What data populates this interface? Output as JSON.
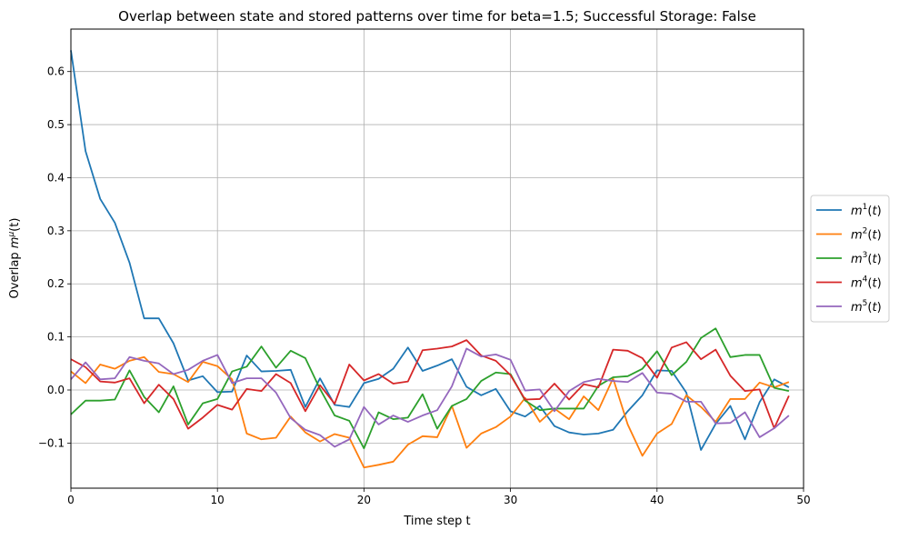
{
  "chart_data": {
    "type": "line",
    "title": "Overlap between state and stored patterns over time for beta=1.5; Successful Storage: False",
    "xlabel": "Time step t",
    "ylabel_prefix": "Overlap ",
    "ylabel_math": "m",
    "ylabel_sup": "μ",
    "ylabel_suffix": "(t)",
    "xlim": [
      0,
      50
    ],
    "ylim": [
      -0.185,
      0.68
    ],
    "xticks": [
      0,
      10,
      20,
      30,
      40,
      50
    ],
    "yticks": [
      -0.1,
      0.0,
      0.1,
      0.2,
      0.3,
      0.4,
      0.5,
      0.6
    ],
    "xtick_labels": [
      "0",
      "10",
      "20",
      "30",
      "40",
      "50"
    ],
    "ytick_labels": [
      "−0.1",
      "0.0",
      "0.1",
      "0.2",
      "0.3",
      "0.4",
      "0.5",
      "0.6"
    ],
    "grid": true,
    "legend_position": "center-right-outside",
    "x": [
      0,
      1,
      2,
      3,
      4,
      5,
      6,
      7,
      8,
      9,
      10,
      11,
      12,
      13,
      14,
      15,
      16,
      17,
      18,
      19,
      20,
      21,
      22,
      23,
      24,
      25,
      26,
      27,
      28,
      29,
      30,
      31,
      32,
      33,
      34,
      35,
      36,
      37,
      38,
      39,
      40,
      41,
      42,
      43,
      44,
      45,
      46,
      47,
      48,
      49
    ],
    "series": [
      {
        "label_sup": "1",
        "color": "#1f77b4",
        "values": [
          0.64,
          0.45,
          0.36,
          0.315,
          0.24,
          0.135,
          0.135,
          0.088,
          0.018,
          0.026,
          -0.004,
          -0.003,
          0.065,
          0.035,
          0.036,
          0.038,
          -0.032,
          0.022,
          -0.028,
          -0.032,
          0.013,
          0.021,
          0.04,
          0.08,
          0.036,
          0.046,
          0.058,
          0.006,
          -0.01,
          0.002,
          -0.04,
          -0.05,
          -0.03,
          -0.068,
          -0.08,
          -0.084,
          -0.082,
          -0.075,
          -0.04,
          -0.01,
          0.037,
          0.036,
          -0.005,
          -0.113,
          -0.064,
          -0.03,
          -0.093,
          -0.023,
          0.02,
          0.005
        ]
      },
      {
        "label_sup": "2",
        "color": "#ff7f0e",
        "values": [
          0.035,
          0.013,
          0.048,
          0.04,
          0.055,
          0.062,
          0.034,
          0.03,
          0.015,
          0.053,
          0.045,
          0.02,
          -0.082,
          -0.093,
          -0.09,
          -0.05,
          -0.08,
          -0.097,
          -0.083,
          -0.09,
          -0.146,
          -0.141,
          -0.135,
          -0.103,
          -0.087,
          -0.089,
          -0.03,
          -0.109,
          -0.082,
          -0.07,
          -0.05,
          -0.015,
          -0.06,
          -0.035,
          -0.055,
          -0.012,
          -0.038,
          0.022,
          -0.065,
          -0.124,
          -0.082,
          -0.064,
          -0.01,
          -0.032,
          -0.06,
          -0.017,
          -0.017,
          0.014,
          0.005,
          0.015
        ]
      },
      {
        "label_sup": "3",
        "color": "#2ca02c",
        "values": [
          -0.046,
          -0.02,
          -0.02,
          -0.018,
          0.037,
          -0.013,
          -0.042,
          0.007,
          -0.065,
          -0.025,
          -0.017,
          0.035,
          0.044,
          0.082,
          0.042,
          0.074,
          0.06,
          0.002,
          -0.048,
          -0.058,
          -0.11,
          -0.042,
          -0.055,
          -0.052,
          -0.008,
          -0.073,
          -0.03,
          -0.017,
          0.017,
          0.033,
          0.03,
          -0.02,
          -0.038,
          -0.035,
          -0.035,
          -0.035,
          0.008,
          0.024,
          0.026,
          0.04,
          0.073,
          0.028,
          0.053,
          0.098,
          0.116,
          0.062,
          0.066,
          0.066,
          0.004,
          -0.002
        ]
      },
      {
        "label_sup": "4",
        "color": "#d62728",
        "values": [
          0.058,
          0.043,
          0.016,
          0.014,
          0.022,
          -0.025,
          0.01,
          -0.017,
          -0.073,
          -0.052,
          -0.028,
          -0.037,
          0.002,
          -0.002,
          0.03,
          0.013,
          -0.04,
          0.009,
          -0.026,
          0.048,
          0.018,
          0.03,
          0.012,
          0.016,
          0.075,
          0.078,
          0.082,
          0.094,
          0.065,
          0.055,
          0.028,
          -0.018,
          -0.017,
          0.012,
          -0.018,
          0.011,
          0.005,
          0.076,
          0.074,
          0.06,
          0.023,
          0.08,
          0.09,
          0.058,
          0.076,
          0.027,
          -0.002,
          0.001,
          -0.072,
          -0.011
        ]
      },
      {
        "label_sup": "5",
        "color": "#9467bd",
        "values": [
          0.02,
          0.052,
          0.02,
          0.022,
          0.062,
          0.055,
          0.05,
          0.03,
          0.038,
          0.055,
          0.066,
          0.013,
          0.022,
          0.022,
          -0.005,
          -0.053,
          -0.075,
          -0.085,
          -0.107,
          -0.093,
          -0.032,
          -0.065,
          -0.048,
          -0.06,
          -0.048,
          -0.038,
          0.007,
          0.078,
          0.063,
          0.067,
          0.057,
          -0.001,
          0.001,
          -0.04,
          -0.002,
          0.015,
          0.021,
          0.017,
          0.015,
          0.032,
          -0.005,
          -0.007,
          -0.022,
          -0.022,
          -0.063,
          -0.062,
          -0.042,
          -0.089,
          -0.072,
          -0.048
        ]
      }
    ]
  }
}
